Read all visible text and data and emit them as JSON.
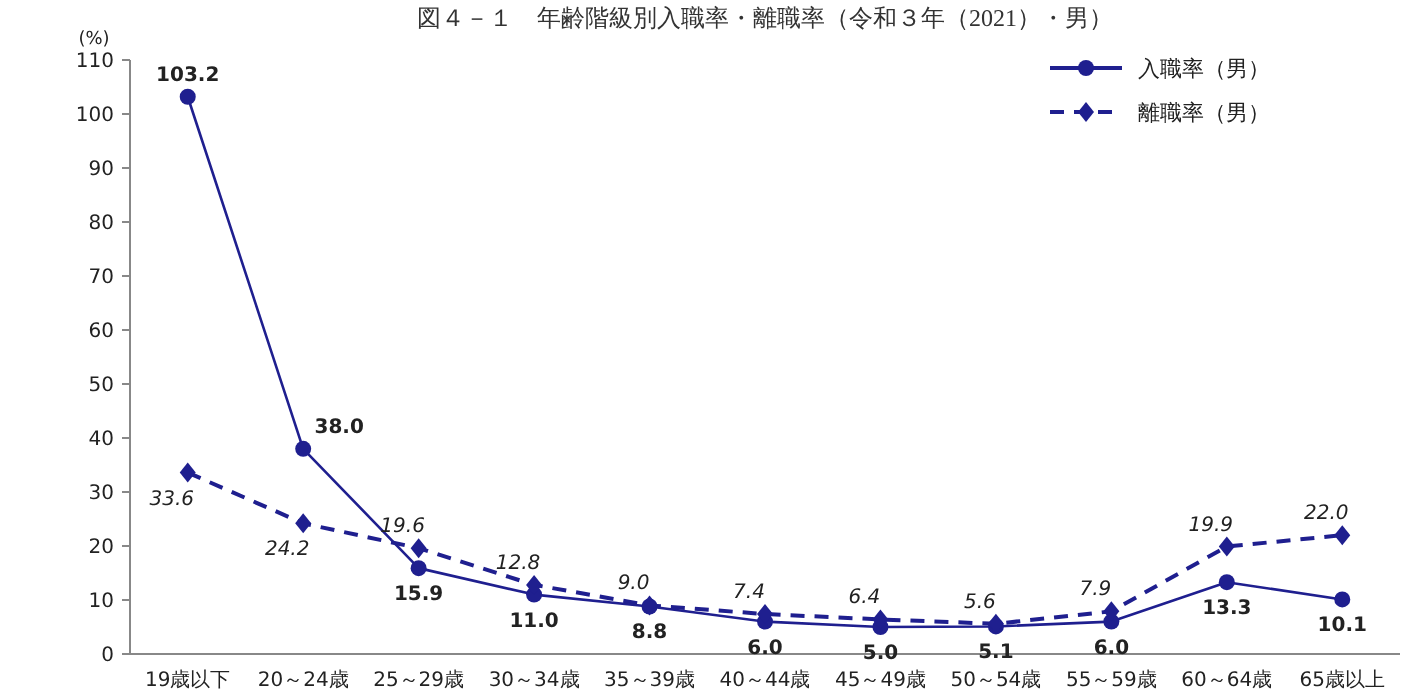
{
  "chart_data": {
    "type": "line",
    "title": "図４－１　年齢階級別入職率・離職率（令和３年（2021）・男）",
    "ylabel": "(%)",
    "categories": [
      "19歳以下",
      "20～24歳",
      "25～29歳",
      "30～34歳",
      "35～39歳",
      "40～44歳",
      "45～49歳",
      "50～54歳",
      "55～59歳",
      "60～64歳",
      "65歳以上"
    ],
    "series": [
      {
        "name": "入職率（男）",
        "color": "#1f1f8f",
        "marker": "circle",
        "line_style": "solid",
        "values": [
          103.2,
          38.0,
          15.9,
          11.0,
          8.8,
          6.0,
          5.0,
          5.1,
          6.0,
          13.3,
          10.1
        ],
        "value_labels": [
          "103.2",
          "38.0",
          "15.9",
          "11.0",
          "8.8",
          "6.0",
          "5.0",
          "5.1",
          "6.0",
          "13.3",
          "10.1"
        ]
      },
      {
        "name": "離職率（男）",
        "color": "#1f1f8f",
        "marker": "diamond",
        "line_style": "dashed",
        "values": [
          33.6,
          24.2,
          19.6,
          12.8,
          9.0,
          7.4,
          6.4,
          5.6,
          7.9,
          19.9,
          22.0
        ],
        "value_labels": [
          "33.6",
          "24.2",
          "19.6",
          "12.8",
          "9.0",
          "7.4",
          "6.4",
          "5.6",
          "7.9",
          "19.9",
          "22.0"
        ]
      }
    ],
    "ylim": [
      0,
      110
    ],
    "yticks": [
      0,
      10,
      20,
      30,
      40,
      50,
      60,
      70,
      80,
      90,
      100,
      110
    ],
    "grid": false,
    "legend": "top right"
  }
}
